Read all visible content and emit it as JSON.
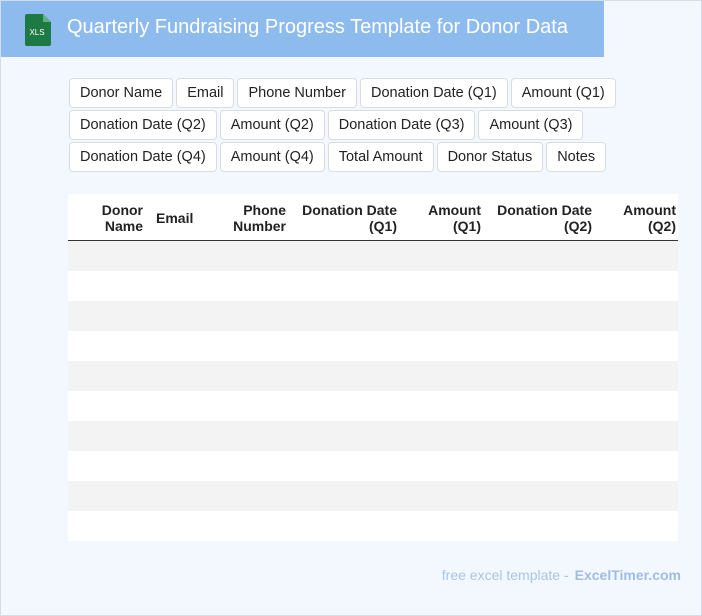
{
  "header": {
    "icon_label": "XLS",
    "title": "Quarterly Fundraising Progress Template for Donor Data"
  },
  "chips": [
    "Donor Name",
    "Email",
    "Phone Number",
    "Donation Date (Q1)",
    "Amount (Q1)",
    "Donation Date (Q2)",
    "Amount (Q2)",
    "Donation Date (Q3)",
    "Amount (Q3)",
    "Donation Date (Q4)",
    "Amount (Q4)",
    "Total Amount",
    "Donor Status",
    "Notes"
  ],
  "table": {
    "headers": [
      "Donor Name",
      "Email",
      "Phone Number",
      "Donation Date (Q1)",
      "Amount (Q1)",
      "Donation Date (Q2)",
      "Amount (Q2)"
    ],
    "rows": [
      [
        "",
        "",
        "",
        "",
        "",
        "",
        ""
      ],
      [
        "",
        "",
        "",
        "",
        "",
        "",
        ""
      ],
      [
        "",
        "",
        "",
        "",
        "",
        "",
        ""
      ],
      [
        "",
        "",
        "",
        "",
        "",
        "",
        ""
      ],
      [
        "",
        "",
        "",
        "",
        "",
        "",
        ""
      ],
      [
        "",
        "",
        "",
        "",
        "",
        "",
        ""
      ],
      [
        "",
        "",
        "",
        "",
        "",
        "",
        ""
      ],
      [
        "",
        "",
        "",
        "",
        "",
        "",
        ""
      ],
      [
        "",
        "",
        "",
        "",
        "",
        "",
        ""
      ],
      [
        "",
        "",
        "",
        "",
        "",
        "",
        ""
      ]
    ]
  },
  "footer": {
    "prefix": "free excel template -",
    "brand": "ExcelTimer.com"
  },
  "colors": {
    "title_bar": "#8ebbee",
    "xls_green": "#1d7a45",
    "background": "#f3f8fe"
  }
}
